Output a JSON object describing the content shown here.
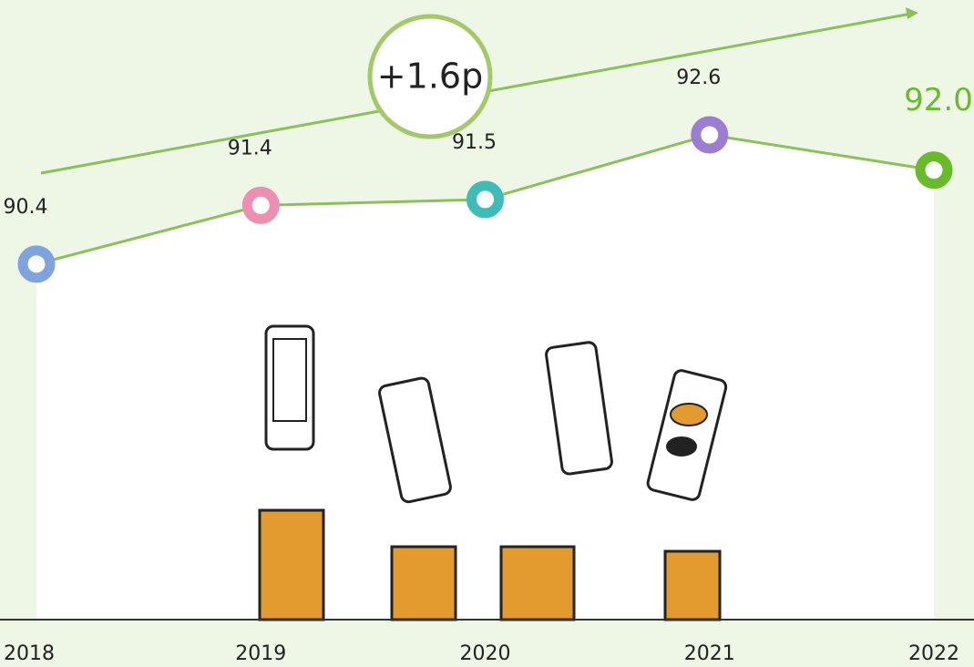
{
  "chart_data": {
    "type": "line",
    "categories": [
      "2018",
      "2019",
      "2020",
      "2021",
      "2022"
    ],
    "values": [
      90.4,
      91.4,
      91.5,
      92.6,
      92.0
    ],
    "value_labels": [
      "90.4",
      "91.4",
      "91.5",
      "92.6",
      "92.0"
    ],
    "color": "#8cc05a",
    "point_colors": [
      "#7fa3dc",
      "#ec8fb0",
      "#3fbcb8",
      "#9b7ed0",
      "#6abb2c"
    ],
    "ylim": [
      87,
      93.5
    ],
    "annotation": "+1.6p"
  }
}
